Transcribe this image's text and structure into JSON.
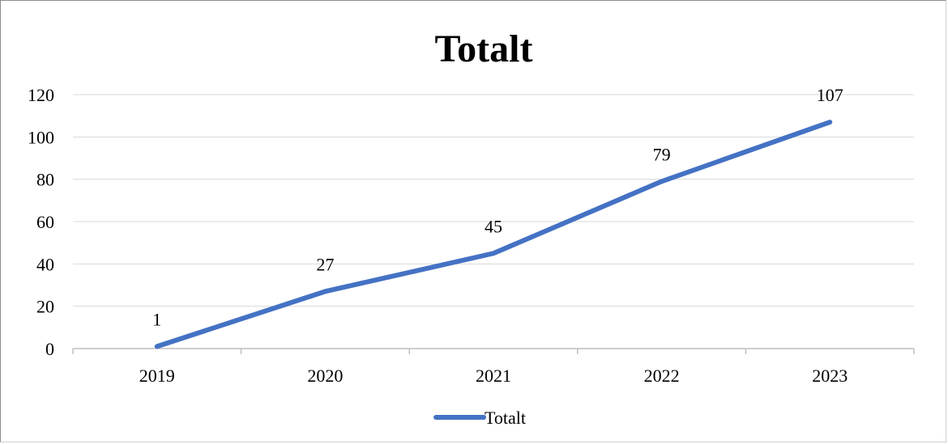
{
  "chart_data": {
    "type": "line",
    "title": "Totalt",
    "categories": [
      "2019",
      "2020",
      "2021",
      "2022",
      "2023"
    ],
    "series": [
      {
        "name": "Totalt",
        "values": [
          1,
          27,
          45,
          79,
          107
        ],
        "data_labels": [
          "1",
          "27",
          "45",
          "79",
          "107"
        ],
        "color": "#4472C4"
      }
    ],
    "y_ticks": [
      "0",
      "20",
      "40",
      "60",
      "80",
      "100",
      "120"
    ],
    "ylim": [
      0,
      120
    ],
    "grid": true,
    "legend_position": "bottom",
    "xlabel": "",
    "ylabel": ""
  },
  "colors": {
    "series_line": "#4472C4",
    "gridline": "#d9d9d9",
    "axis_line": "#bfbfbf"
  }
}
